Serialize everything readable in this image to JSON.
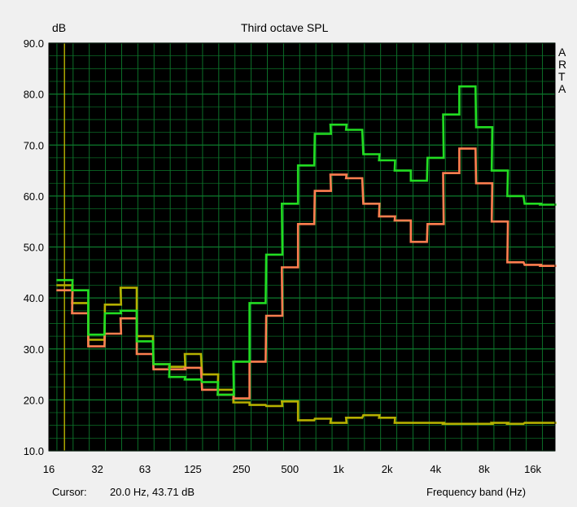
{
  "chart_data": {
    "type": "line",
    "title": "Third octave SPL",
    "ylabel": "dB",
    "xlabel": "Frequency band (Hz)",
    "ylim": [
      10,
      90
    ],
    "yticks": [
      "90.0",
      "80.0",
      "70.0",
      "60.0",
      "50.0",
      "40.0",
      "30.0",
      "20.0",
      "10.0"
    ],
    "xticks": [
      "16",
      "32",
      "63",
      "125",
      "250",
      "500",
      "1k",
      "2k",
      "4k",
      "8k",
      "16k"
    ],
    "grid": true,
    "colors": {
      "background": "#000000",
      "grid": "#0d7a2c",
      "cursor": "#c8c000"
    },
    "bands": [
      20,
      25,
      31.5,
      40,
      50,
      63,
      80,
      100,
      125,
      160,
      200,
      250,
      315,
      400,
      500,
      630,
      800,
      1000,
      1250,
      1600,
      2000,
      2500,
      3150,
      4000,
      5000,
      6300,
      8000,
      10000,
      12500,
      16000,
      20000
    ],
    "series": [
      {
        "color": "#22dd22",
        "values": [
          43.5,
          41.5,
          32.8,
          37,
          37.5,
          31.5,
          27,
          24.5,
          24,
          23.5,
          21,
          27.5,
          39,
          48.5,
          58.5,
          66,
          72.2,
          74,
          73,
          68.2,
          67,
          65,
          63,
          67.5,
          76,
          81.5,
          73.5,
          65,
          60,
          58.5,
          58.3
        ]
      },
      {
        "color": "#ff7f50",
        "values": [
          41.5,
          37,
          30.5,
          33,
          36,
          29,
          26,
          26,
          26.3,
          22,
          21,
          20.3,
          27.5,
          36.5,
          46,
          54.5,
          61,
          64.2,
          63.5,
          58.5,
          56,
          55.2,
          51,
          54.5,
          64.5,
          69.3,
          62.5,
          55,
          47,
          46.5,
          46.3
        ]
      },
      {
        "color": "#b6b000",
        "values": [
          42.5,
          39,
          31.8,
          38.7,
          42,
          32.5,
          27,
          26.5,
          29,
          25,
          22,
          19.5,
          19,
          18.8,
          19.7,
          16,
          16.3,
          15.5,
          16.5,
          17,
          16.5,
          15.5,
          15.5,
          15.5,
          15.3,
          15.3,
          15.3,
          15.5,
          15.3,
          15.5,
          15.5
        ]
      }
    ]
  },
  "side_label": [
    "A",
    "R",
    "T",
    "A"
  ],
  "status": {
    "cursor_label": "Cursor:",
    "cursor_value": "20.0 Hz, 43.71 dB"
  }
}
